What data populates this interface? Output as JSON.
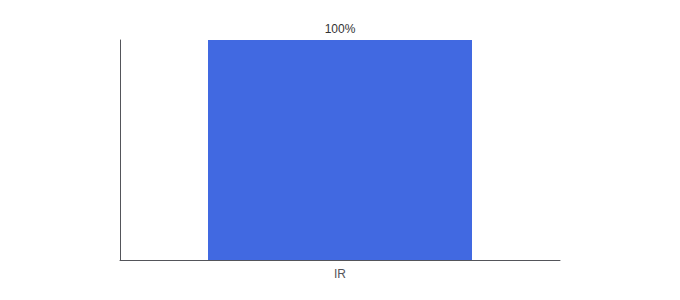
{
  "chart_data": {
    "type": "bar",
    "categories": [
      "IR"
    ],
    "values": [
      100
    ],
    "color": "#4169e1",
    "ylim": [
      0,
      100
    ],
    "data_labels": true,
    "value_labels": [
      "100%"
    ],
    "grid": false,
    "tick_labels": "x"
  }
}
